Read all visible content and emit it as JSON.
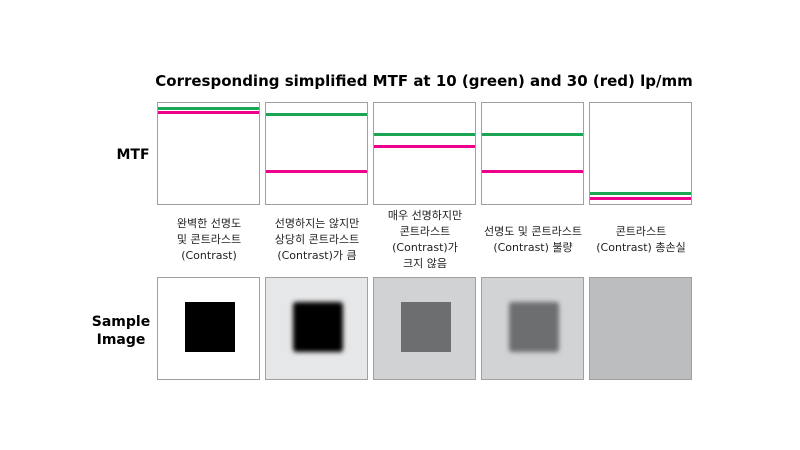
{
  "title": "Corresponding simplified MTF at 10 (green) and 30 (red) lp/mm",
  "row_labels": {
    "mtf": "MTF",
    "sample": "Sample Image"
  },
  "colors": {
    "green": "#1aa655",
    "red": "#ec008c",
    "border": "#a0a0a0"
  },
  "columns": [
    {
      "caption": [
        "완벽한 선명도",
        "및 콘트라스트",
        "(Contrast)"
      ],
      "mtf_10": 0.95,
      "mtf_30": 0.91,
      "background": "#ffffff",
      "square": "#000000",
      "blurred": false
    },
    {
      "caption": [
        "선명하지는 않지만",
        "상당히 콘트라스트",
        "(Contrast)가 큼"
      ],
      "mtf_10": 0.89,
      "mtf_30": 0.32,
      "background": "#e6e7e8",
      "square": "#000000",
      "blurred": true
    },
    {
      "caption": [
        "매우 선명하지만",
        "콘트라스트",
        "(Contrast)가",
        "크지 않음"
      ],
      "mtf_10": 0.69,
      "mtf_30": 0.57,
      "background": "#d1d2d3",
      "square": "#6d6e70",
      "blurred": false
    },
    {
      "caption": [
        "선명도 및 콘트라스트",
        "(Contrast) 불량"
      ],
      "mtf_10": 0.69,
      "mtf_30": 0.32,
      "background": "#d1d3d4",
      "square": "#6d6e70",
      "blurred": true
    },
    {
      "caption": [
        "콘트라스트",
        "(Contrast) 총손실"
      ],
      "mtf_10": 0.1,
      "mtf_30": 0.05,
      "background": "#bcbdbf",
      "square": null,
      "blurred": false
    }
  ]
}
